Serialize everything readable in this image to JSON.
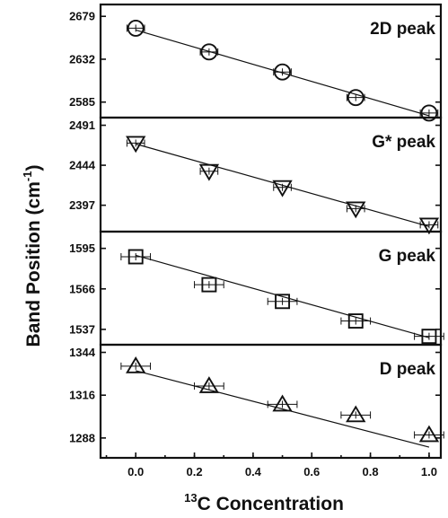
{
  "chart_data": {
    "type": "scatter",
    "ylabel_main": "Band Position (cm",
    "ylabel_sup": "-1",
    "ylabel_close": ")",
    "xlabel_sup": "13",
    "xlabel_main": "C Concentration",
    "x_ticks": [
      "0.0",
      "0.2",
      "0.4",
      "0.6",
      "0.8",
      "1.0"
    ],
    "xlim": [
      -0.12,
      1.04
    ],
    "panels": [
      {
        "label": "2D peak",
        "marker": "circle",
        "ylim": [
          2568,
          2692
        ],
        "y_ticks": [
          2679,
          2632,
          2585
        ],
        "x": [
          0.0,
          0.25,
          0.5,
          0.75,
          1.0
        ],
        "y": [
          2666,
          2640,
          2618,
          2590,
          2573
        ],
        "xerr": 0.03,
        "fit": {
          "x": [
            0.0,
            1.0
          ],
          "y": [
            2664,
            2570
          ]
        }
      },
      {
        "label": "G* peak",
        "marker": "triangle-down",
        "ylim": [
          2366,
          2500
        ],
        "y_ticks": [
          2491,
          2444,
          2397
        ],
        "x": [
          0.0,
          0.25,
          0.5,
          0.75,
          1.0
        ],
        "y": [
          2470,
          2437,
          2418,
          2393,
          2374
        ],
        "xerr": 0.03,
        "fit": {
          "x": [
            0.0,
            1.0
          ],
          "y": [
            2469,
            2372
          ]
        }
      },
      {
        "label": "G peak",
        "marker": "square",
        "ylim": [
          1526,
          1607
        ],
        "y_ticks": [
          1595,
          1566,
          1537
        ],
        "x": [
          0.0,
          0.25,
          0.5,
          0.75,
          1.0
        ],
        "y": [
          1589,
          1569,
          1557,
          1543,
          1532
        ],
        "xerr": 0.05,
        "fit": {
          "x": [
            0.0,
            1.0
          ],
          "y": [
            1590,
            1531
          ]
        }
      },
      {
        "label": "D peak",
        "marker": "triangle-up",
        "ylim": [
          1275,
          1349
        ],
        "y_ticks": [
          1344,
          1316,
          1288
        ],
        "x": [
          0.0,
          0.25,
          0.5,
          0.75,
          1.0
        ],
        "y": [
          1335,
          1322,
          1310,
          1303,
          1290
        ],
        "xerr": 0.05,
        "fit": {
          "x": [
            0.0,
            1.0
          ],
          "y": [
            1332,
            1282
          ]
        }
      }
    ]
  }
}
